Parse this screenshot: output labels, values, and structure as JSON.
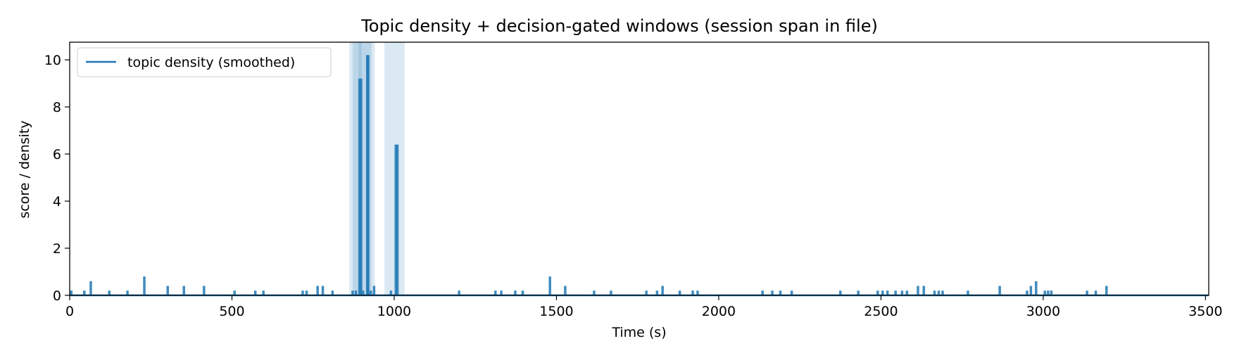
{
  "chart_data": {
    "type": "line",
    "title": "Topic density + decision-gated windows (session span in file)",
    "xlabel": "Time (s)",
    "ylabel": "score / density",
    "xlim": [
      0,
      3510
    ],
    "ylim": [
      0,
      10.75
    ],
    "xticks": [
      0,
      500,
      1000,
      1500,
      2000,
      2500,
      3000,
      3500
    ],
    "yticks": [
      0,
      2,
      4,
      6,
      8,
      10
    ],
    "grid": false,
    "legend_position": "top-left",
    "colors": {
      "series": "#1f77b4",
      "window": "#1f77b4",
      "axes": "#000000"
    },
    "series": [
      {
        "name": "topic density (smoothed)",
        "type": "spikes",
        "points": [
          {
            "x": 5,
            "y": 0.2
          },
          {
            "x": 45,
            "y": 0.2
          },
          {
            "x": 65,
            "y": 0.6
          },
          {
            "x": 122,
            "y": 0.2
          },
          {
            "x": 178,
            "y": 0.2
          },
          {
            "x": 230,
            "y": 0.8
          },
          {
            "x": 302,
            "y": 0.4
          },
          {
            "x": 352,
            "y": 0.4
          },
          {
            "x": 414,
            "y": 0.4
          },
          {
            "x": 508,
            "y": 0.2
          },
          {
            "x": 572,
            "y": 0.2
          },
          {
            "x": 597,
            "y": 0.2
          },
          {
            "x": 718,
            "y": 0.2
          },
          {
            "x": 730,
            "y": 0.2
          },
          {
            "x": 764,
            "y": 0.4
          },
          {
            "x": 780,
            "y": 0.4
          },
          {
            "x": 810,
            "y": 0.2
          },
          {
            "x": 872,
            "y": 0.2
          },
          {
            "x": 882,
            "y": 0.2
          },
          {
            "x": 893,
            "y": 9.2
          },
          {
            "x": 898,
            "y": 9.2
          },
          {
            "x": 904,
            "y": 0.2
          },
          {
            "x": 917,
            "y": 10.2
          },
          {
            "x": 920,
            "y": 10.2
          },
          {
            "x": 928,
            "y": 0.2
          },
          {
            "x": 938,
            "y": 0.4
          },
          {
            "x": 990,
            "y": 0.2
          },
          {
            "x": 1005,
            "y": 6.4
          },
          {
            "x": 1010,
            "y": 6.4
          },
          {
            "x": 1200,
            "y": 0.2
          },
          {
            "x": 1312,
            "y": 0.2
          },
          {
            "x": 1330,
            "y": 0.2
          },
          {
            "x": 1373,
            "y": 0.2
          },
          {
            "x": 1396,
            "y": 0.2
          },
          {
            "x": 1480,
            "y": 0.8
          },
          {
            "x": 1527,
            "y": 0.4
          },
          {
            "x": 1616,
            "y": 0.2
          },
          {
            "x": 1668,
            "y": 0.2
          },
          {
            "x": 1777,
            "y": 0.2
          },
          {
            "x": 1810,
            "y": 0.2
          },
          {
            "x": 1827,
            "y": 0.4
          },
          {
            "x": 1880,
            "y": 0.2
          },
          {
            "x": 1920,
            "y": 0.2
          },
          {
            "x": 1935,
            "y": 0.2
          },
          {
            "x": 2135,
            "y": 0.2
          },
          {
            "x": 2165,
            "y": 0.2
          },
          {
            "x": 2190,
            "y": 0.2
          },
          {
            "x": 2225,
            "y": 0.2
          },
          {
            "x": 2375,
            "y": 0.2
          },
          {
            "x": 2430,
            "y": 0.2
          },
          {
            "x": 2490,
            "y": 0.2
          },
          {
            "x": 2505,
            "y": 0.2
          },
          {
            "x": 2520,
            "y": 0.2
          },
          {
            "x": 2545,
            "y": 0.2
          },
          {
            "x": 2565,
            "y": 0.2
          },
          {
            "x": 2580,
            "y": 0.2
          },
          {
            "x": 2614,
            "y": 0.4
          },
          {
            "x": 2632,
            "y": 0.4
          },
          {
            "x": 2665,
            "y": 0.2
          },
          {
            "x": 2678,
            "y": 0.2
          },
          {
            "x": 2690,
            "y": 0.2
          },
          {
            "x": 2768,
            "y": 0.2
          },
          {
            "x": 2866,
            "y": 0.4
          },
          {
            "x": 2950,
            "y": 0.2
          },
          {
            "x": 2962,
            "y": 0.4
          },
          {
            "x": 2978,
            "y": 0.6
          },
          {
            "x": 3005,
            "y": 0.2
          },
          {
            "x": 3015,
            "y": 0.2
          },
          {
            "x": 3025,
            "y": 0.2
          },
          {
            "x": 3135,
            "y": 0.2
          },
          {
            "x": 3162,
            "y": 0.2
          },
          {
            "x": 3195,
            "y": 0.4
          }
        ]
      }
    ],
    "windows": [
      {
        "start": 862,
        "end": 930,
        "alpha": 0.16
      },
      {
        "start": 872,
        "end": 900,
        "alpha": 0.16
      },
      {
        "start": 890,
        "end": 940,
        "alpha": 0.16
      },
      {
        "start": 970,
        "end": 1032,
        "alpha": 0.16
      }
    ]
  }
}
